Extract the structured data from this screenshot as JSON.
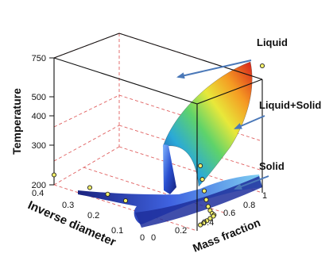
{
  "chart_data": {
    "type": "surface3d",
    "axes": {
      "z": {
        "label": "Temperature",
        "ticks": [
          "750",
          "500",
          "400",
          "300",
          "200"
        ]
      },
      "y": {
        "label": "Inverse diameter",
        "ticks": [
          "0.4",
          "0.3",
          "0.2",
          "0.1",
          "0"
        ],
        "range": [
          0,
          0.4
        ]
      },
      "x": {
        "label": "Mass fraction",
        "ticks": [
          "0",
          "0.2",
          "0.4",
          "0.6",
          "0.8",
          "1"
        ],
        "range": [
          0,
          1
        ]
      }
    },
    "regions": [
      {
        "label": "Liquid"
      },
      {
        "label": "Liquid+Solid"
      },
      {
        "label": "Solid"
      }
    ],
    "points_liquidus_front": [
      {
        "mass_fraction": 0.05,
        "inverse_diameter": 0,
        "temperature": 380
      },
      {
        "mass_fraction": 0.08,
        "inverse_diameter": 0,
        "temperature": 330
      },
      {
        "mass_fraction": 0.11,
        "inverse_diameter": 0,
        "temperature": 290
      },
      {
        "mass_fraction": 0.14,
        "inverse_diameter": 0,
        "temperature": 265
      },
      {
        "mass_fraction": 0.17,
        "inverse_diameter": 0,
        "temperature": 245
      },
      {
        "mass_fraction": 0.2,
        "inverse_diameter": 0,
        "temperature": 232
      },
      {
        "mass_fraction": 0.23,
        "inverse_diameter": 0,
        "temperature": 222
      },
      {
        "mass_fraction": 0.26,
        "inverse_diameter": 0,
        "temperature": 215
      },
      {
        "mass_fraction": 1,
        "inverse_diameter": 0,
        "temperature": 750
      }
    ],
    "points_eutectic_line": [
      {
        "mass_fraction": 0,
        "inverse_diameter": 0.4,
        "temperature": 225
      },
      {
        "mass_fraction": 0,
        "inverse_diameter": 0.3,
        "temperature": 222
      },
      {
        "mass_fraction": 0,
        "inverse_diameter": 0.25,
        "temperature": 220
      },
      {
        "mass_fraction": 0,
        "inverse_diameter": 0.2,
        "temperature": 218
      },
      {
        "mass_fraction": 0.05,
        "inverse_diameter": 0,
        "temperature": 210
      },
      {
        "mass_fraction": 0.1,
        "inverse_diameter": 0,
        "temperature": 210
      },
      {
        "mass_fraction": 0.15,
        "inverse_diameter": 0,
        "temperature": 211
      },
      {
        "mass_fraction": 0.2,
        "inverse_diameter": 0,
        "temperature": 212
      },
      {
        "mass_fraction": 0.25,
        "inverse_diameter": 0,
        "temperature": 213
      }
    ]
  }
}
